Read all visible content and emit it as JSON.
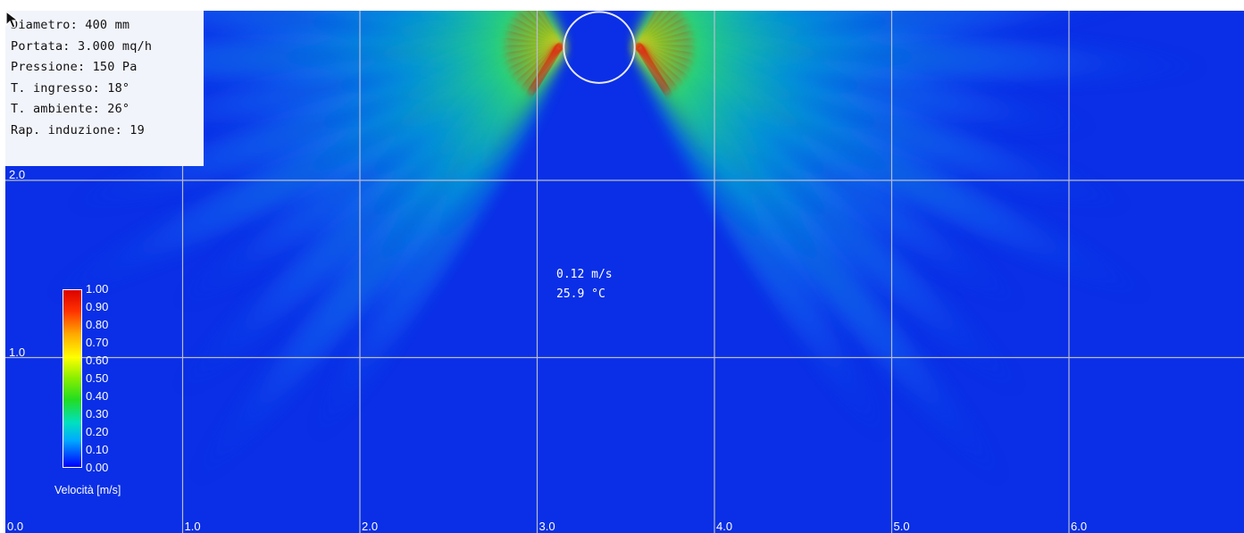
{
  "info": {
    "lines": [
      "Diametro: 400 mm",
      "Portata: 3.000 mq/h",
      "Pressione: 150 Pa",
      "T. ingresso: 18°",
      "T. ambiente: 26°",
      "Rap. induzione: 19"
    ]
  },
  "readout": {
    "velocity": "0.12 m/s",
    "temperature": "25.9 °C"
  },
  "colorbar": {
    "title": "Velocità [m/s]",
    "labels": [
      "1.00",
      "0.90",
      "0.80",
      "0.70",
      "0.60",
      "0.50",
      "0.40",
      "0.30",
      "0.20",
      "0.10",
      "0.00"
    ]
  },
  "chart_data": {
    "type": "heatmap",
    "title": "",
    "x_ticks": [
      "0.0",
      "1.0",
      "2.0",
      "3.0",
      "4.0",
      "5.0",
      "6.0"
    ],
    "y_ticks": [
      "1.0",
      "2.0"
    ],
    "xlim": [
      0,
      6.95
    ],
    "ylim": [
      0,
      2.95
    ],
    "grid": true,
    "colorbar": {
      "label": "Velocità [m/s]",
      "range": [
        0,
        1.0
      ]
    },
    "diffuser": {
      "x": 3.35,
      "y": 2.75,
      "diameter_m": 0.4
    },
    "probe": {
      "x": 2.95,
      "y": 1.4,
      "velocity": "0.12 m/s",
      "temperature": "25.9 °C"
    },
    "colors": {
      "background": "#0a2fe6",
      "jet_mid": "#22dd22",
      "jet_core": "#dd0000",
      "grid": "#b8bcd0"
    }
  }
}
